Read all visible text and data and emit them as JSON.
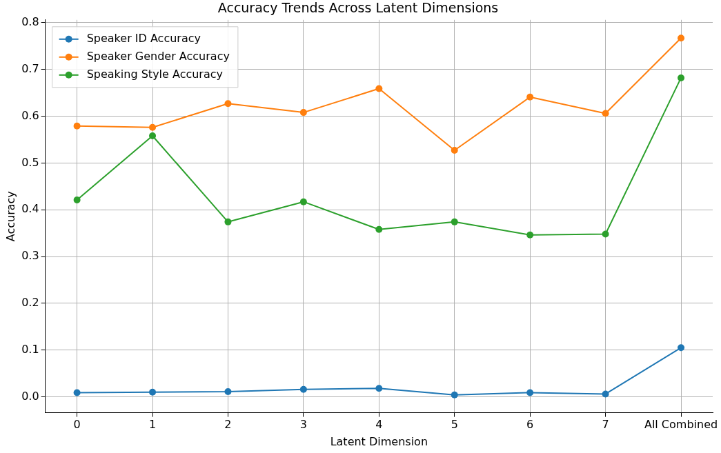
{
  "chart_data": {
    "type": "line",
    "title": "Accuracy Trends Across Latent Dimensions",
    "xlabel": "Latent Dimension",
    "ylabel": "Accuracy",
    "categories": [
      "0",
      "1",
      "2",
      "3",
      "4",
      "5",
      "6",
      "7",
      "All Combined"
    ],
    "series": [
      {
        "name": "Speaker ID Accuracy",
        "color": "#1f77b4",
        "values": [
          0.009,
          0.01,
          0.011,
          0.016,
          0.018,
          0.004,
          0.009,
          0.006,
          0.105
        ]
      },
      {
        "name": "Speaker Gender Accuracy",
        "color": "#ff7f0e",
        "values": [
          0.579,
          0.576,
          0.627,
          0.608,
          0.659,
          0.527,
          0.641,
          0.606,
          0.767
        ]
      },
      {
        "name": "Speaking Style Accuracy",
        "color": "#2ca02c",
        "values": [
          0.421,
          0.558,
          0.374,
          0.417,
          0.358,
          0.374,
          0.346,
          0.348,
          0.682
        ]
      }
    ],
    "ylim": [
      -0.034,
      0.806
    ],
    "yticks": [
      {
        "value": 0,
        "label": "0.0"
      },
      0.1,
      0.2,
      0.3,
      0.4,
      0.5,
      0.6,
      0.7,
      0.8
    ],
    "grid": true,
    "legend": "top left",
    "marker": "circle",
    "line_style": "solid"
  }
}
